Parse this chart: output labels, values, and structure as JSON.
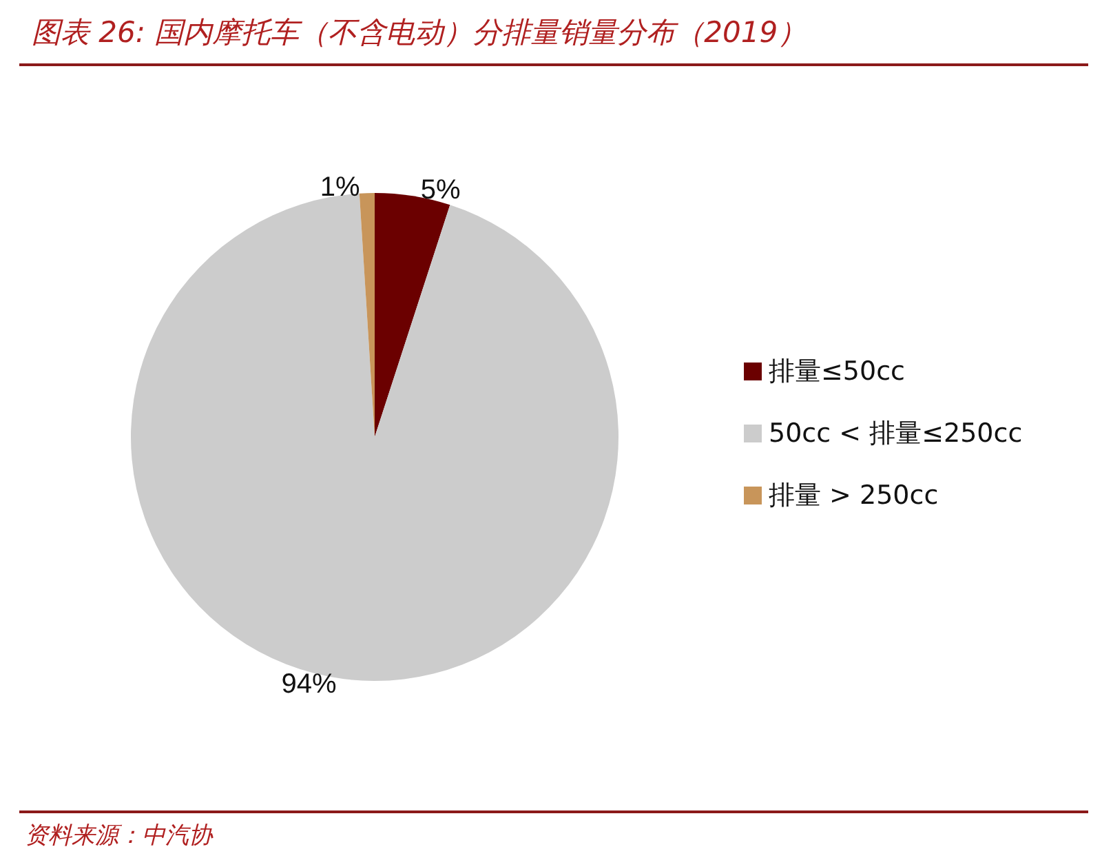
{
  "chart_data": {
    "type": "pie",
    "title": "图表 26: 国内摩托车（不含电动）分排量销量分布（2019）",
    "categories": [
      "排量≤50cc",
      "50cc < 排量≤250cc",
      "排量 > 250cc"
    ],
    "values": [
      5,
      94,
      1
    ],
    "colors": [
      "#6b0000",
      "#cccccc",
      "#c8955a"
    ],
    "value_labels": [
      "5%",
      "94%",
      "1%"
    ],
    "legend": "right",
    "annotations": [
      "资料来源：中汽协"
    ]
  }
}
